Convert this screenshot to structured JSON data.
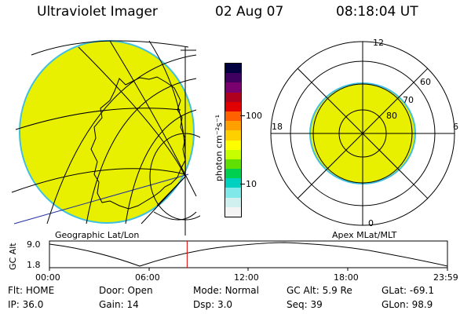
{
  "header": {
    "title": "Ultraviolet Imager",
    "date": "02 Aug 07",
    "time": "08:18:04 UT"
  },
  "colorbar": {
    "label": "photon cm⁻²s⁻¹",
    "ticks": [
      "100",
      "10"
    ],
    "colors": [
      "#000040",
      "#400060",
      "#7a0070",
      "#b00020",
      "#e00000",
      "#ff6000",
      "#ffa000",
      "#ffd000",
      "#ffff00",
      "#c8ff00",
      "#60e000",
      "#00d050",
      "#00d0c0",
      "#80e8e8",
      "#d0f0f0",
      "#f4f4f4"
    ]
  },
  "left_panel": {
    "caption": "Geographic Lat/Lon",
    "fill_color": "#e8f000",
    "edge_color": "#40c0e0"
  },
  "right_panel": {
    "caption": "Apex MLat/MLT",
    "mlt_labels": {
      "top": "12",
      "bottom": "0",
      "left": "18",
      "right": "6"
    },
    "mlat_labels": [
      "60",
      "70",
      "80"
    ],
    "fill_color": "#e8f000"
  },
  "timeline": {
    "axis_label": "GC Alt",
    "ytick_top": "9.0",
    "ytick_bottom": "1.8",
    "xticks": [
      "00:00",
      "06:00",
      "12:00",
      "18:00",
      "23:59"
    ],
    "marker_color": "#e00000",
    "marker_fraction": 0.3459
  },
  "info": {
    "row1": [
      {
        "label": "Flt:",
        "value": "HOME"
      },
      {
        "label": "Door:",
        "value": "Open"
      },
      {
        "label": "Mode:",
        "value": "Normal"
      },
      {
        "label": "GC Alt:",
        "value": "5.9 Re"
      },
      {
        "label": "GLat:",
        "value": "-69.1"
      }
    ],
    "row2": [
      {
        "label": "IP:",
        "value": "36.0"
      },
      {
        "label": "Gain:",
        "value": "14"
      },
      {
        "label": "Dsp:",
        "value": "3.0"
      },
      {
        "label": "Seq:",
        "value": "39"
      },
      {
        "label": "GLon:",
        "value": "98.9"
      }
    ]
  }
}
